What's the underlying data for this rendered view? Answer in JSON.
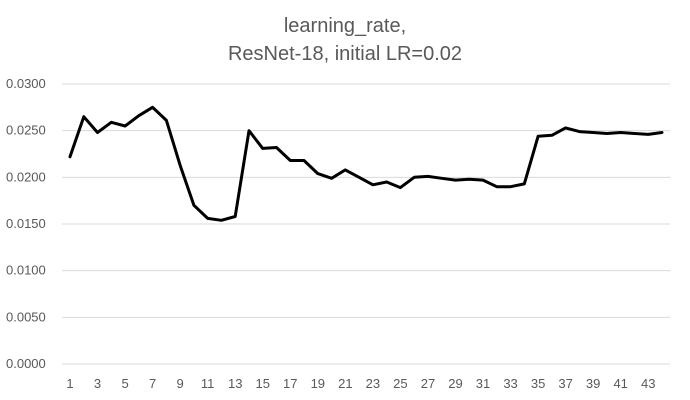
{
  "chart_data": {
    "type": "line",
    "title_lines": [
      "learning_rate,",
      "ResNet-18, initial LR=0.02"
    ],
    "xlabel": "",
    "ylabel": "",
    "ylim": [
      0,
      0.03
    ],
    "y_ticks": [
      "0.0000",
      "0.0050",
      "0.0100",
      "0.0150",
      "0.0200",
      "0.0250",
      "0.0300"
    ],
    "y_tick_values": [
      0,
      0.005,
      0.01,
      0.015,
      0.02,
      0.025,
      0.03
    ],
    "x_tick_labels": [
      "1",
      "3",
      "5",
      "7",
      "9",
      "11",
      "13",
      "15",
      "17",
      "19",
      "21",
      "23",
      "25",
      "27",
      "29",
      "31",
      "33",
      "35",
      "37",
      "39",
      "41",
      "43"
    ],
    "grid": "horizontal",
    "legend": "none",
    "series": [
      {
        "color": "#000000",
        "x": [
          1,
          2,
          3,
          4,
          5,
          6,
          7,
          8,
          9,
          10,
          11,
          12,
          13,
          14,
          15,
          16,
          17,
          18,
          19,
          20,
          21,
          22,
          23,
          24,
          25,
          26,
          27,
          28,
          29,
          30,
          31,
          32,
          33,
          34,
          35,
          36,
          37,
          38,
          39,
          40,
          41,
          42,
          43,
          44
        ],
        "values": [
          0.0222,
          0.0265,
          0.0248,
          0.0259,
          0.0255,
          0.0266,
          0.0275,
          0.0261,
          0.0213,
          0.017,
          0.0156,
          0.0154,
          0.0158,
          0.025,
          0.0231,
          0.0232,
          0.0218,
          0.0218,
          0.0204,
          0.0199,
          0.0208,
          0.02,
          0.0192,
          0.0195,
          0.0189,
          0.02,
          0.0201,
          0.0199,
          0.0197,
          0.0198,
          0.0197,
          0.019,
          0.019,
          0.0193,
          0.0244,
          0.0245,
          0.0253,
          0.0249,
          0.0248,
          0.0247,
          0.0248,
          0.0247,
          0.0246,
          0.0248
        ]
      }
    ]
  }
}
